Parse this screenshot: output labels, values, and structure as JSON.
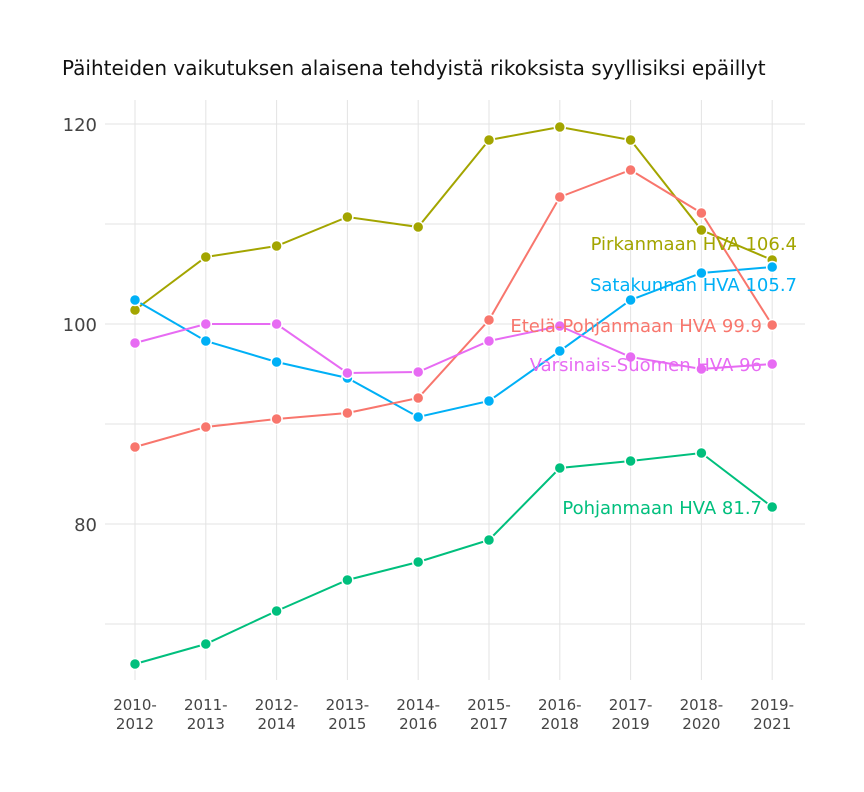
{
  "chart_data": {
    "type": "line",
    "title": "Päihteiden vaikutuksen alaisena tehdyistä rikoksista syyllisiksi epäillyt",
    "xlabel": "",
    "ylabel": "",
    "categories": [
      [
        "2010-",
        "2012"
      ],
      [
        "2011-",
        "2013"
      ],
      [
        "2012-",
        "2014"
      ],
      [
        "2013-",
        "2015"
      ],
      [
        "2014-",
        "2016"
      ],
      [
        "2015-",
        "2017"
      ],
      [
        "2016-",
        "2018"
      ],
      [
        "2017-",
        "2019"
      ],
      [
        "2018-",
        "2020"
      ],
      [
        "2019-",
        "2021"
      ]
    ],
    "ylim": [
      64.4,
      122.4
    ],
    "yticks": [
      80,
      100,
      120
    ],
    "ygrid_minor": [
      70,
      90,
      110
    ],
    "grid": true,
    "legend": "none (direct end labels)",
    "series": [
      {
        "label": "Pirkanmaan HVA 106.4",
        "color": "#a3a500",
        "values": [
          101.4,
          106.7,
          107.8,
          110.7,
          109.7,
          118.4,
          119.7,
          118.4,
          109.4,
          106.4
        ]
      },
      {
        "label": "Satakunnan HVA 105.7",
        "color": "#00b0f6",
        "values": [
          102.4,
          98.3,
          96.2,
          94.6,
          90.7,
          92.3,
          97.3,
          102.4,
          105.1,
          105.7
        ]
      },
      {
        "label": "Etelä-Pohjanmaan HVA 99.9",
        "color": "#f8766d",
        "values": [
          87.7,
          89.7,
          90.5,
          91.1,
          92.6,
          100.4,
          112.7,
          115.4,
          111.1,
          99.9
        ]
      },
      {
        "label": "Varsinais-Suomen HVA 96",
        "color": "#e76bf3",
        "values": [
          98.1,
          100.0,
          100.0,
          95.1,
          95.2,
          98.3,
          99.8,
          96.7,
          95.5,
          96.0
        ]
      },
      {
        "label": "Pohjanmaan HVA 81.7",
        "color": "#00bf7d",
        "values": [
          66.0,
          68.0,
          71.3,
          74.4,
          76.2,
          78.4,
          85.6,
          86.3,
          87.1,
          81.7
        ]
      }
    ]
  }
}
